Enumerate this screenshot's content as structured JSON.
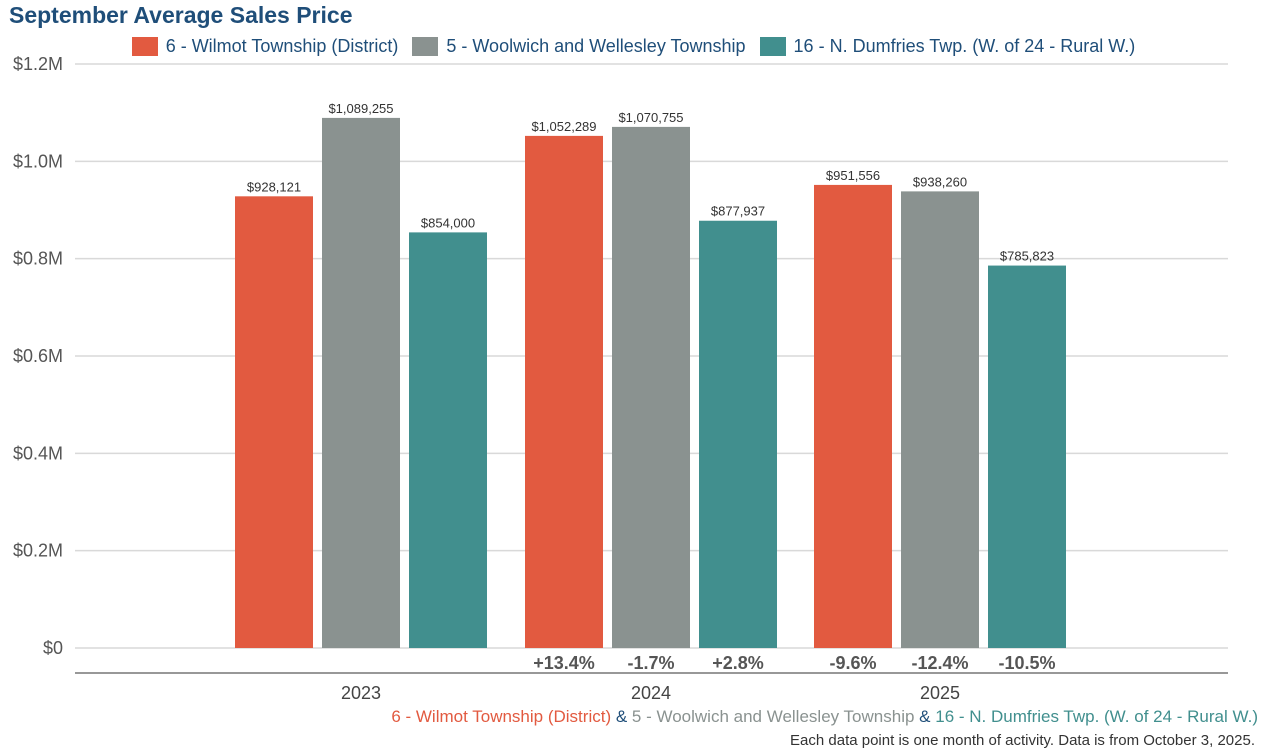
{
  "colors": {
    "series": [
      "#e25a40",
      "#8a9290",
      "#418f8e"
    ],
    "title": "#1f4e79",
    "amp": "#1f4e79"
  },
  "chart_data": {
    "type": "bar",
    "title": "September Average Sales Price",
    "categories": [
      "2023",
      "2024",
      "2025"
    ],
    "series": [
      {
        "name": "6 - Wilmot Township (District)",
        "values": [
          928121,
          1052289,
          951556
        ],
        "labels": [
          "$928,121",
          "$1,052,289",
          "$951,556"
        ],
        "changes": [
          "",
          "+13.4%",
          "-9.6%"
        ]
      },
      {
        "name": "5 - Woolwich and Wellesley Township",
        "values": [
          1089255,
          1070755,
          938260
        ],
        "labels": [
          "$1,089,255",
          "$1,070,755",
          "$938,260"
        ],
        "changes": [
          "",
          "-1.7%",
          "-12.4%"
        ]
      },
      {
        "name": "16 - N. Dumfries Twp. (W. of 24 - Rural W.)",
        "values": [
          854000,
          877937,
          785823
        ],
        "labels": [
          "$854,000",
          "$877,937",
          "$785,823"
        ],
        "changes": [
          "",
          "+2.8%",
          "-10.5%"
        ]
      }
    ],
    "yticks": [
      0,
      200000,
      400000,
      600000,
      800000,
      1000000,
      1200000
    ],
    "ytick_labels": [
      "$0",
      "$0.2M",
      "$0.4M",
      "$0.6M",
      "$0.8M",
      "$1.0M",
      "$1.2M"
    ],
    "ylim": [
      0,
      1200000
    ],
    "grid": true,
    "legend_position": "top"
  },
  "footer": {
    "series_names": [
      "6 - Wilmot Township (District)",
      "5 - Woolwich and Wellesley Township",
      "16 - N. Dumfries Twp. (W. of 24 - Rural W.)"
    ],
    "separator": " & ",
    "note": "Each data point is one month of activity. Data is from October 3, 2025."
  }
}
